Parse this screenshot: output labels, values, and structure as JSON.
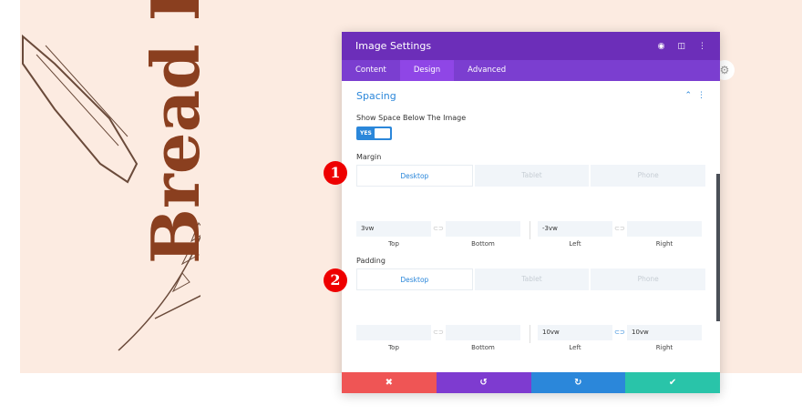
{
  "hero": {
    "text": "Bread D"
  },
  "modal": {
    "title": "Image Settings",
    "tabs": [
      {
        "label": "Content"
      },
      {
        "label": "Design"
      },
      {
        "label": "Advanced"
      }
    ],
    "section": "Spacing",
    "show_space_label": "Show Space Below The Image",
    "toggle": "YES",
    "margin": {
      "label": "Margin",
      "devices": [
        "Desktop",
        "Tablet",
        "Phone"
      ],
      "top": "3vw",
      "bottom": "",
      "left": "-3vw",
      "right": "",
      "captions": [
        "Top",
        "Bottom",
        "Left",
        "Right"
      ]
    },
    "padding": {
      "label": "Padding",
      "devices": [
        "Desktop",
        "Tablet",
        "Phone"
      ],
      "top": "",
      "bottom": "",
      "left": "10vw",
      "right": "10vw",
      "captions": [
        "Top",
        "Bottom",
        "Left",
        "Right"
      ]
    }
  },
  "badges": [
    "1",
    "2"
  ],
  "colors": {
    "header": "#6c2eb9",
    "tabs": "#7b3ed0",
    "accent": "#2b87da",
    "cancel": "#ef5555",
    "undo": "#7e3bd0",
    "redo": "#2b87da",
    "save": "#29c4a9"
  }
}
